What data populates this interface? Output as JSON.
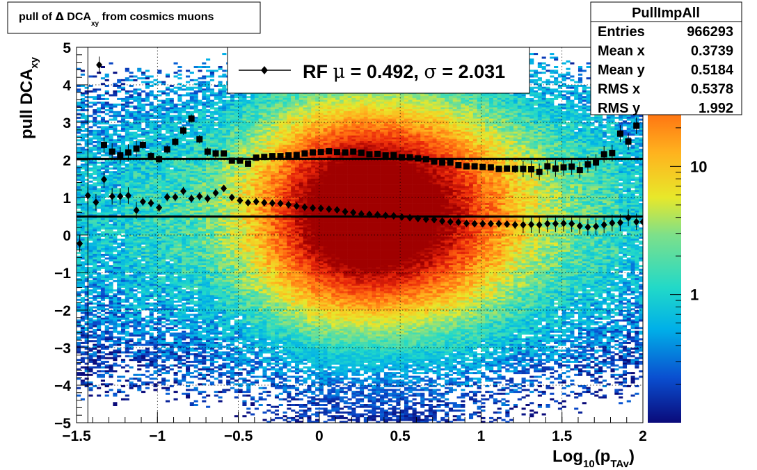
{
  "chart_data": {
    "type": "heatmap",
    "title": {
      "prefix": "pull of ",
      "symbol": "Δ",
      "middle": " DCA",
      "sub": "xy",
      "suffix": "  from cosmics muons"
    },
    "xlabel": {
      "main": "Log",
      "sub1": "10",
      "mid": "(p",
      "sub2": "TAv",
      "end": ")"
    },
    "ylabel": {
      "main": "pull DCA",
      "sub": "xy"
    },
    "xlim": [
      -1.5,
      2
    ],
    "ylim": [
      -5,
      5
    ],
    "xticks": [
      {
        "v": -1.5,
        "label": "−1.5"
      },
      {
        "v": -1,
        "label": "−1"
      },
      {
        "v": -0.5,
        "label": "−0.5"
      },
      {
        "v": 0,
        "label": "0"
      },
      {
        "v": 0.5,
        "label": "0.5"
      },
      {
        "v": 1,
        "label": "1"
      },
      {
        "v": 1.5,
        "label": "1.5"
      },
      {
        "v": 2,
        "label": "2"
      }
    ],
    "yticks": [
      {
        "v": 5,
        "label": "5"
      },
      {
        "v": 4,
        "label": "4"
      },
      {
        "v": 3,
        "label": "3"
      },
      {
        "v": 2,
        "label": "2"
      },
      {
        "v": 1,
        "label": "1"
      },
      {
        "v": 0,
        "label": "0"
      },
      {
        "v": -1,
        "label": "−1"
      },
      {
        "v": -2,
        "label": "−2"
      },
      {
        "v": -3,
        "label": "−3"
      },
      {
        "v": -4,
        "label": "−4"
      },
      {
        "v": -5,
        "label": "−5"
      }
    ],
    "colorbar": {
      "scale": "log",
      "labels": [
        {
          "v": 10,
          "label": "10"
        },
        {
          "v": 1,
          "label": "1"
        }
      ],
      "colors": [
        "#0a0a7a",
        "#0a4fd0",
        "#00b0e8",
        "#22d9c8",
        "#7de08a",
        "#e8e82a",
        "#ffb21e",
        "#ff6a10",
        "#e8250a",
        "#a00000"
      ]
    },
    "grid": true,
    "fit_lines": [
      {
        "y": 2.031
      },
      {
        "y": 0.492
      }
    ],
    "series": [
      {
        "marker": "square",
        "points": [
          [
            -1.33,
            2.4
          ],
          [
            -1.28,
            2.22
          ],
          [
            -1.23,
            2.12
          ],
          [
            -1.18,
            2.2
          ],
          [
            -1.13,
            2.3
          ],
          [
            -1.09,
            2.4
          ],
          [
            -1.04,
            2.1
          ],
          [
            -0.99,
            2.02
          ],
          [
            -0.94,
            2.28
          ],
          [
            -0.89,
            2.48
          ],
          [
            -0.84,
            2.78
          ],
          [
            -0.79,
            3.1
          ],
          [
            -0.74,
            2.55
          ],
          [
            -0.69,
            2.22
          ],
          [
            -0.64,
            2.17
          ],
          [
            -0.59,
            2.17
          ],
          [
            -0.54,
            1.98
          ],
          [
            -0.49,
            1.98
          ],
          [
            -0.44,
            1.9
          ],
          [
            -0.39,
            2.06
          ],
          [
            -0.34,
            2.08
          ],
          [
            -0.29,
            2.1
          ],
          [
            -0.24,
            2.1
          ],
          [
            -0.19,
            2.12
          ],
          [
            -0.14,
            2.13
          ],
          [
            -0.09,
            2.17
          ],
          [
            -0.04,
            2.2
          ],
          [
            0.01,
            2.21
          ],
          [
            0.06,
            2.23
          ],
          [
            0.11,
            2.21
          ],
          [
            0.16,
            2.2
          ],
          [
            0.21,
            2.22
          ],
          [
            0.26,
            2.19
          ],
          [
            0.31,
            2.15
          ],
          [
            0.36,
            2.16
          ],
          [
            0.41,
            2.12
          ],
          [
            0.46,
            2.13
          ],
          [
            0.51,
            2.07
          ],
          [
            0.56,
            2.07
          ],
          [
            0.61,
            2.04
          ],
          [
            0.66,
            2.02
          ],
          [
            0.71,
            1.96
          ],
          [
            0.76,
            1.93
          ],
          [
            0.81,
            1.93
          ],
          [
            0.86,
            1.86
          ],
          [
            0.91,
            1.83
          ],
          [
            0.96,
            1.83
          ],
          [
            1.01,
            1.81
          ],
          [
            1.06,
            1.8
          ],
          [
            1.11,
            1.76
          ],
          [
            1.16,
            1.77
          ],
          [
            1.21,
            1.76
          ],
          [
            1.26,
            1.76
          ],
          [
            1.31,
            1.75
          ],
          [
            1.36,
            1.68
          ],
          [
            1.41,
            1.83
          ],
          [
            1.46,
            1.77
          ],
          [
            1.51,
            1.8
          ],
          [
            1.56,
            1.82
          ],
          [
            1.61,
            1.73
          ],
          [
            1.66,
            1.88
          ],
          [
            1.71,
            1.93
          ],
          [
            1.76,
            2.15
          ],
          [
            1.81,
            2.18
          ],
          [
            1.86,
            2.7
          ],
          [
            1.91,
            2.49
          ],
          [
            1.96,
            2.91
          ]
        ]
      },
      {
        "marker": "diamond",
        "points": [
          [
            -1.48,
            -0.23
          ],
          [
            -1.43,
            1.05
          ],
          [
            -1.38,
            0.87
          ],
          [
            -1.36,
            4.53
          ],
          [
            -1.33,
            1.48
          ],
          [
            -1.28,
            1.03
          ],
          [
            -1.23,
            1.03
          ],
          [
            -1.18,
            1.05
          ],
          [
            -1.13,
            0.66
          ],
          [
            -1.09,
            0.89
          ],
          [
            -1.04,
            0.85
          ],
          [
            -0.99,
            0.73
          ],
          [
            -0.94,
            1.01
          ],
          [
            -0.89,
            1.01
          ],
          [
            -0.84,
            1.17
          ],
          [
            -0.79,
            0.97
          ],
          [
            -0.74,
            1.03
          ],
          [
            -0.69,
            0.97
          ],
          [
            -0.64,
            1.12
          ],
          [
            -0.59,
            1.24
          ],
          [
            -0.54,
            1.0
          ],
          [
            -0.49,
            0.92
          ],
          [
            -0.44,
            0.86
          ],
          [
            -0.39,
            0.89
          ],
          [
            -0.34,
            0.86
          ],
          [
            -0.29,
            0.85
          ],
          [
            -0.24,
            0.84
          ],
          [
            -0.19,
            0.81
          ],
          [
            -0.14,
            0.77
          ],
          [
            -0.09,
            0.74
          ],
          [
            -0.04,
            0.72
          ],
          [
            0.01,
            0.71
          ],
          [
            0.06,
            0.69
          ],
          [
            0.11,
            0.67
          ],
          [
            0.16,
            0.62
          ],
          [
            0.21,
            0.6
          ],
          [
            0.26,
            0.56
          ],
          [
            0.31,
            0.55
          ],
          [
            0.36,
            0.54
          ],
          [
            0.41,
            0.52
          ],
          [
            0.46,
            0.51
          ],
          [
            0.51,
            0.48
          ],
          [
            0.56,
            0.46
          ],
          [
            0.61,
            0.44
          ],
          [
            0.66,
            0.42
          ],
          [
            0.71,
            0.41
          ],
          [
            0.76,
            0.37
          ],
          [
            0.81,
            0.35
          ],
          [
            0.86,
            0.34
          ],
          [
            0.91,
            0.31
          ],
          [
            0.96,
            0.3
          ],
          [
            1.01,
            0.3
          ],
          [
            1.06,
            0.3
          ],
          [
            1.11,
            0.3
          ],
          [
            1.16,
            0.29
          ],
          [
            1.21,
            0.27
          ],
          [
            1.26,
            0.27
          ],
          [
            1.31,
            0.28
          ],
          [
            1.36,
            0.27
          ],
          [
            1.41,
            0.3
          ],
          [
            1.46,
            0.3
          ],
          [
            1.51,
            0.31
          ],
          [
            1.56,
            0.3
          ],
          [
            1.61,
            0.24
          ],
          [
            1.66,
            0.21
          ],
          [
            1.71,
            0.23
          ],
          [
            1.76,
            0.27
          ],
          [
            1.81,
            0.32
          ],
          [
            1.86,
            0.33
          ],
          [
            1.91,
            0.46
          ],
          [
            1.96,
            0.35
          ],
          [
            2.0,
            0.35
          ]
        ]
      }
    ]
  },
  "legend": {
    "prefix": "RF ",
    "mu_symbol": "μ",
    "mid": " =  0.492, ",
    "sigma_symbol": "σ",
    "suffix": " =   2.031"
  },
  "stats": {
    "title": "PullImpAll",
    "rows": [
      {
        "label": "Entries",
        "value": "966293"
      },
      {
        "label": "Mean x",
        "value": "0.3739"
      },
      {
        "label": "Mean y",
        "value": "0.5184"
      },
      {
        "label": "RMS x",
        "value": "0.5378"
      },
      {
        "label": "RMS y",
        "value": "1.992"
      }
    ]
  }
}
